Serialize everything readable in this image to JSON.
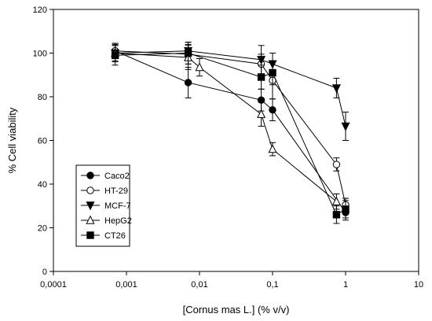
{
  "chart_data": {
    "type": "scatter",
    "title": "",
    "xlabel": "[Cornus mas L.] (% v/v)",
    "ylabel": "% Cell viability",
    "x_scale": "log",
    "xlim": [
      0.0001,
      10
    ],
    "ylim": [
      0,
      120
    ],
    "x_ticks": [
      "0,0001",
      "0,001",
      "0,01",
      "0,1",
      "1",
      "10"
    ],
    "y_ticks": [
      "0",
      "20",
      "40",
      "60",
      "80",
      "100",
      "120"
    ],
    "grid": false,
    "legend_position": "bottom-left",
    "series": [
      {
        "name": "Caco2",
        "marker": "filled-circle",
        "x": [
          0.0007,
          0.007,
          0.07,
          0.1,
          1
        ],
        "y": [
          101,
          86.5,
          78.5,
          74,
          27
        ],
        "error": [
          3.5,
          7,
          5,
          5,
          3.5
        ]
      },
      {
        "name": "HT-29",
        "marker": "open-circle",
        "x": [
          0.0007,
          0.007,
          0.07,
          0.1,
          0.75,
          1
        ],
        "y": [
          101,
          99.5,
          95,
          87.5,
          49,
          30.5
        ],
        "error": [
          3.5,
          4.5,
          4.5,
          8.5,
          3,
          3
        ]
      },
      {
        "name": "MCF-7",
        "marker": "filled-triangle-down",
        "x": [
          0.0007,
          0.007,
          0.07,
          0.1,
          0.75,
          1
        ],
        "y": [
          100,
          101,
          97,
          95,
          84,
          66.5
        ],
        "error": [
          4,
          4,
          6.5,
          5,
          4.5,
          6.5
        ]
      },
      {
        "name": "HepG2",
        "marker": "open-triangle-up",
        "x": [
          0.0007,
          0.007,
          0.01,
          0.07,
          0.1,
          0.75
        ],
        "y": [
          100,
          98,
          93.5,
          72,
          56,
          32
        ],
        "error": [
          3.5,
          5.5,
          4,
          5.5,
          3,
          3.5
        ]
      },
      {
        "name": "CT26",
        "marker": "filled-square",
        "x": [
          0.0007,
          0.007,
          0.07,
          0.1,
          0.75,
          1
        ],
        "y": [
          99,
          100,
          89,
          91,
          26,
          28.5
        ],
        "error": [
          4.5,
          5,
          5.5,
          5.5,
          4,
          4
        ]
      }
    ]
  }
}
